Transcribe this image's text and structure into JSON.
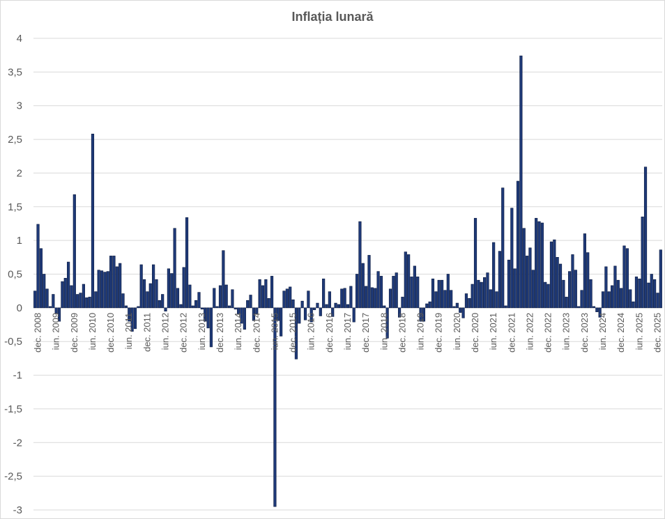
{
  "chart_data": {
    "type": "bar",
    "title": "Inflația lunară",
    "xlabel": "",
    "ylabel": "",
    "ylim": [
      -3,
      4
    ],
    "y_ticks": [
      "-3",
      "-2,5",
      "-2",
      "-1,5",
      "-1",
      "-0,5",
      "0",
      "0,5",
      "1",
      "1,5",
      "2",
      "2,5",
      "3",
      "3,5",
      "4"
    ],
    "y_tick_values": [
      -3,
      -2.5,
      -2,
      -1.5,
      -1,
      -0.5,
      0,
      0.5,
      1,
      1.5,
      2,
      2.5,
      3,
      3.5,
      4
    ],
    "grid": true,
    "legend": "none",
    "bar_color": "#1f3a78",
    "bar_edge_color": "#0b1a3f",
    "grid_color": "#d9d9d9",
    "period_start": "nov. 2008",
    "period_end": "dec. 2025",
    "x_ticks": [
      "dec. 2008",
      "iun. 2009",
      "dec. 2009",
      "iun. 2010",
      "dec. 2010",
      "iun. 2011",
      "dec. 2011",
      "iun. 2012",
      "dec. 2012",
      "iun. 2013",
      "dec. 2013",
      "iun. 2014",
      "dec. 2014",
      "iun. 2015",
      "dec. 2015",
      "iun. 2016",
      "dec. 2016",
      "iun. 2017",
      "dec. 2017",
      "iun. 2018",
      "dec. 2018",
      "iun. 2019",
      "dec. 2019",
      "iun. 2020",
      "dec. 2020",
      "iun. 2021",
      "dec. 2021",
      "iun. 2022",
      "dec. 2022",
      "iun. 2023",
      "dec. 2023",
      "iun. 2024",
      "dec. 2024",
      "iun. 2025",
      "dec. 2025"
    ],
    "x_tick_month_index": [
      1,
      7,
      13,
      19,
      25,
      31,
      37,
      43,
      49,
      55,
      61,
      67,
      73,
      79,
      85,
      91,
      97,
      103,
      109,
      115,
      121,
      127,
      133,
      139,
      145,
      151,
      157,
      163,
      169,
      175,
      181,
      187,
      193,
      199,
      205
    ],
    "values": [
      0.25,
      1.24,
      0.88,
      0.5,
      0.28,
      0.02,
      0.2,
      -0.08,
      -0.2,
      0.39,
      0.44,
      0.68,
      0.33,
      1.68,
      0.2,
      0.22,
      0.35,
      0.15,
      0.16,
      2.58,
      0.24,
      0.56,
      0.55,
      0.53,
      0.54,
      0.77,
      0.77,
      0.61,
      0.66,
      0.21,
      0.03,
      -0.2,
      -0.35,
      -0.31,
      0.02,
      0.64,
      0.42,
      0.24,
      0.36,
      0.64,
      0.42,
      0.11,
      0.2,
      -0.05,
      0.58,
      0.51,
      1.18,
      0.29,
      0.05,
      0.6,
      1.34,
      0.34,
      0.03,
      0.11,
      0.23,
      -0.02,
      -0.2,
      -0.3,
      -0.58,
      0.29,
      0.02,
      0.33,
      0.85,
      0.34,
      0.03,
      0.27,
      -0.02,
      -0.09,
      -0.23,
      -0.32,
      0.11,
      0.19,
      -0.19,
      -0.09,
      0.42,
      0.33,
      0.42,
      0.14,
      0.47,
      -2.95,
      -0.19,
      -0.42,
      0.25,
      0.28,
      0.31,
      0.12,
      -0.76,
      -0.23,
      0.1,
      -0.18,
      0.25,
      -0.21,
      -0.03,
      0.07,
      -0.12,
      0.43,
      0.05,
      0.24,
      -0.13,
      0.07,
      0.05,
      0.28,
      0.29,
      0.05,
      0.32,
      -0.21,
      0.5,
      1.28,
      0.66,
      0.32,
      0.78,
      0.3,
      0.29,
      0.54,
      0.47,
      0.03,
      -0.45,
      0.28,
      0.47,
      0.52,
      -0.14,
      0.16,
      0.83,
      0.79,
      0.46,
      0.62,
      0.46,
      -0.2,
      -0.2,
      0.06,
      0.09,
      0.43,
      0.24,
      0.41,
      0.41,
      0.26,
      0.5,
      0.26,
      0.02,
      0.07,
      -0.07,
      -0.15,
      0.21,
      0.14,
      0.35,
      1.33,
      0.41,
      0.38,
      0.45,
      0.52,
      0.27,
      0.97,
      0.24,
      0.84,
      1.78,
      0.03,
      0.71,
      1.48,
      0.58,
      1.88,
      3.74,
      1.18,
      0.77,
      0.89,
      0.56,
      1.33,
      1.28,
      1.26,
      0.38,
      0.35,
      0.98,
      1.01,
      0.75,
      0.65,
      0.41,
      0.16,
      0.54,
      0.79,
      0.56,
      0.02,
      0.26,
      1.1,
      0.82,
      0.42,
      0.02,
      -0.06,
      -0.14,
      0.24,
      0.61,
      0.24,
      0.33,
      0.62,
      0.41,
      0.29,
      0.92,
      0.88,
      0.27,
      0.09,
      0.46,
      0.43,
      1.35,
      2.09,
      0.37,
      0.5,
      0.42,
      0.22,
      0.86
    ]
  }
}
